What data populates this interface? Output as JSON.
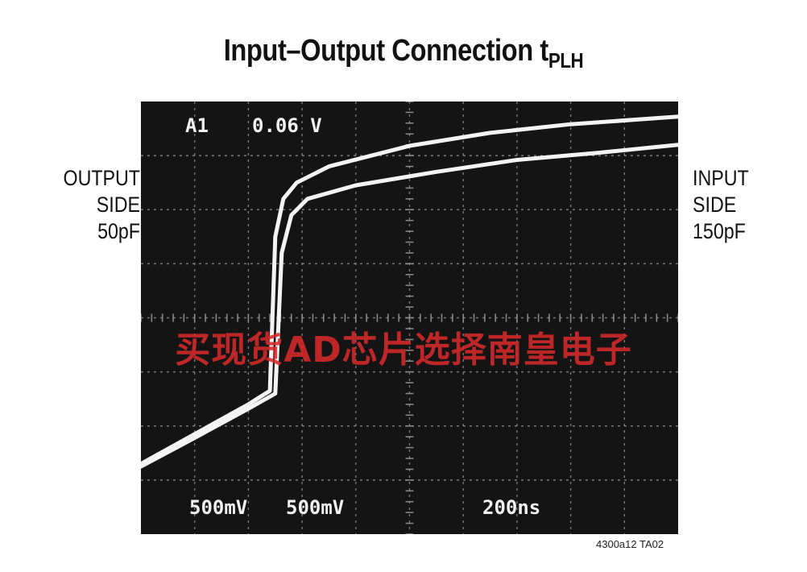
{
  "title": {
    "main": "Input–Output Connection t",
    "subscript": "PLH"
  },
  "left_label": [
    "OUTPUT",
    "SIDE",
    "50pF"
  ],
  "right_label": [
    "INPUT",
    "SIDE",
    "150pF"
  ],
  "scope": {
    "trigger_channel": "A1",
    "trigger_level": "0.06 V",
    "ch1_scale": "500mV",
    "ch2_scale": "500mV",
    "time_scale": "200ns"
  },
  "footer_code": "4300a12 TA02",
  "watermark": "买现货AD芯片选择南皇电子",
  "colors": {
    "screen": "#141414",
    "grid": "#9a9a9a",
    "trace": "#f4f4f4",
    "watermark": "#d62a2a"
  },
  "chart_data": {
    "type": "line",
    "title": "Input–Output Connection tPLH",
    "grid": true,
    "x_divisions": 10,
    "y_divisions": 8,
    "x_unit": "div (200ns/div)",
    "y_unit": "div (500mV/div)",
    "xlim": [
      0,
      10
    ],
    "ylim": [
      0,
      8
    ],
    "series": [
      {
        "name": "OUTPUT SIDE 50pF",
        "points": [
          [
            0,
            1.3
          ],
          [
            1.0,
            1.85
          ],
          [
            2.0,
            2.4
          ],
          [
            2.4,
            2.65
          ],
          [
            2.5,
            5.5
          ],
          [
            2.65,
            6.2
          ],
          [
            2.9,
            6.5
          ],
          [
            3.5,
            6.8
          ],
          [
            5.0,
            7.18
          ],
          [
            6.5,
            7.42
          ],
          [
            8.0,
            7.58
          ],
          [
            10.0,
            7.72
          ]
        ]
      },
      {
        "name": "INPUT SIDE 150pF",
        "points": [
          [
            0,
            1.25
          ],
          [
            1.0,
            1.78
          ],
          [
            2.0,
            2.32
          ],
          [
            2.5,
            2.6
          ],
          [
            2.62,
            5.2
          ],
          [
            2.8,
            5.9
          ],
          [
            3.1,
            6.2
          ],
          [
            4.0,
            6.45
          ],
          [
            5.5,
            6.7
          ],
          [
            7.0,
            6.92
          ],
          [
            8.5,
            7.05
          ],
          [
            10.0,
            7.2
          ]
        ]
      }
    ]
  }
}
